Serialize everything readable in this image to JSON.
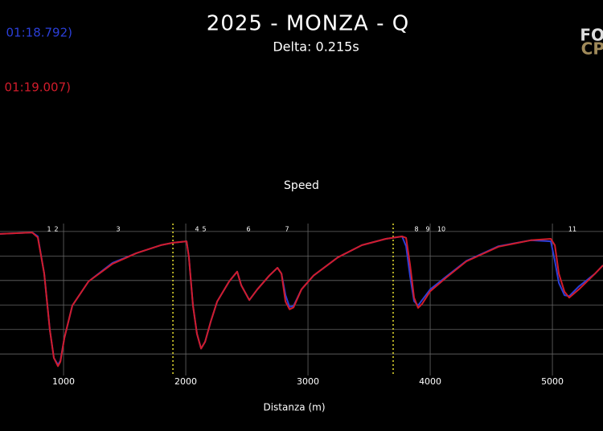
{
  "chart_data": {
    "type": "line",
    "title": "2025 - MONZA - Q",
    "subtitle": "Delta: 0.215s",
    "driver_times": [
      "01:18.792)",
      "01:19.007)"
    ],
    "logo": [
      "FO",
      "CP"
    ],
    "plot_title": "Speed",
    "xlabel": "Distanza (m)",
    "xlim": [
      480,
      5414
    ],
    "ylim": [
      56,
      358
    ],
    "xticks": [
      1000,
      2000,
      3000,
      4000,
      5000
    ],
    "ygrid": [
      100,
      150,
      200,
      250,
      300,
      350
    ],
    "sector_lines": [
      1895,
      3697
    ],
    "corners": {
      "labels": [
        "1",
        "2",
        "3",
        "4",
        "5",
        "6",
        "7",
        "8",
        "9",
        "10",
        "11"
      ],
      "x": [
        882,
        941,
        1447,
        2092,
        2151,
        2513,
        2829,
        3888,
        3980,
        4092,
        5164
      ]
    },
    "x": [
      480,
      743,
      789,
      842,
      888,
      921,
      954,
      974,
      1007,
      1072,
      1204,
      1401,
      1599,
      1796,
      1895,
      2007,
      2026,
      2059,
      2092,
      2125,
      2158,
      2204,
      2257,
      2355,
      2421,
      2454,
      2520,
      2586,
      2684,
      2750,
      2783,
      2816,
      2849,
      2882,
      2947,
      3046,
      3243,
      3441,
      3638,
      3770,
      3803,
      3836,
      3868,
      3901,
      3934,
      4000,
      4132,
      4296,
      4559,
      4822,
      4987,
      5020,
      5053,
      5099,
      5138,
      5217,
      5349,
      5414
    ],
    "series": [
      {
        "color": "#2b3fd9",
        "values": [
          345,
          348,
          340,
          264,
          149,
          92,
          78,
          86,
          133,
          199,
          248,
          286,
          306,
          322,
          327,
          330,
          297,
          199,
          141,
          111,
          125,
          166,
          207,
          248,
          268,
          240,
          210,
          232,
          260,
          276,
          264,
          220,
          196,
          198,
          232,
          260,
          297,
          322,
          335,
          340,
          320,
          258,
          208,
          199,
          210,
          232,
          258,
          290,
          320,
          332,
          330,
          290,
          245,
          220,
          218,
          238,
          264,
          281
        ]
      },
      {
        "color": "#d11c2b",
        "values": [
          345,
          348,
          338,
          264,
          149,
          92,
          75,
          84,
          133,
          199,
          248,
          284,
          306,
          322,
          327,
          330,
          297,
          199,
          141,
          111,
          125,
          166,
          207,
          248,
          268,
          240,
          210,
          232,
          260,
          276,
          264,
          207,
          191,
          195,
          232,
          260,
          297,
          322,
          335,
          340,
          337,
          281,
          215,
          194,
          202,
          228,
          256,
          289,
          319,
          332,
          335,
          322,
          264,
          227,
          215,
          232,
          264,
          281
        ]
      }
    ]
  }
}
